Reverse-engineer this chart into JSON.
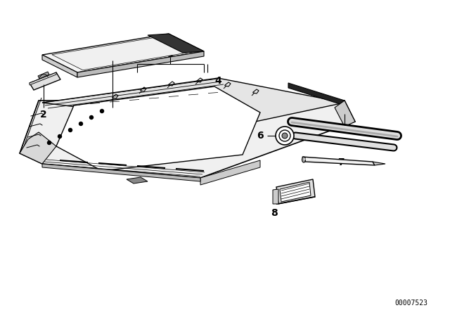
{
  "background_color": "#ffffff",
  "part_number": "00007523",
  "line_color": "#000000",
  "text_color": "#000000",
  "fig_width": 6.4,
  "fig_height": 4.48,
  "dpi": 100
}
